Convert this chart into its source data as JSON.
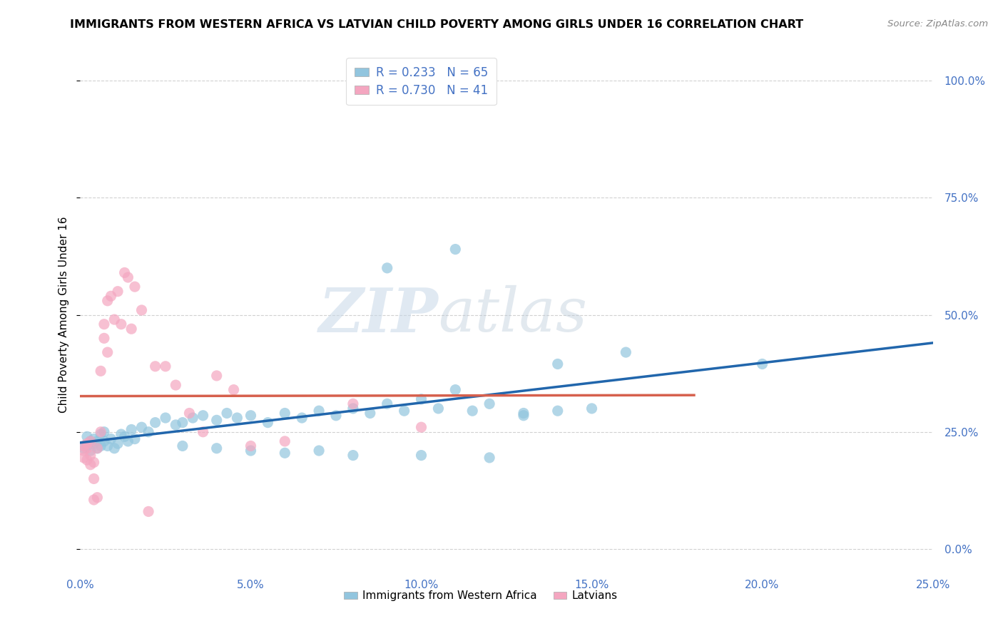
{
  "title": "IMMIGRANTS FROM WESTERN AFRICA VS LATVIAN CHILD POVERTY AMONG GIRLS UNDER 16 CORRELATION CHART",
  "source": "Source: ZipAtlas.com",
  "ylabel": "Child Poverty Among Girls Under 16",
  "xlim": [
    0.0,
    0.25
  ],
  "ylim": [
    -0.05,
    1.05
  ],
  "xticks": [
    0.0,
    0.05,
    0.1,
    0.15,
    0.2,
    0.25
  ],
  "yticks": [
    0.0,
    0.25,
    0.5,
    0.75,
    1.0
  ],
  "xtick_labels": [
    "0.0%",
    "5.0%",
    "10.0%",
    "15.0%",
    "20.0%",
    "25.0%"
  ],
  "ytick_labels": [
    "0.0%",
    "25.0%",
    "50.0%",
    "75.0%",
    "100.0%"
  ],
  "blue_color": "#92c5de",
  "pink_color": "#f4a6c0",
  "blue_line_color": "#2166ac",
  "pink_line_color": "#d6604d",
  "legend_R_blue": "R = 0.233",
  "legend_N_blue": "N = 65",
  "legend_R_pink": "R = 0.730",
  "legend_N_pink": "N = 41",
  "legend_label_blue": "Immigrants from Western Africa",
  "legend_label_pink": "Latvians",
  "watermark_zip": "ZIP",
  "watermark_atlas": "atlas",
  "blue_x": [
    0.001,
    0.002,
    0.002,
    0.003,
    0.003,
    0.004,
    0.004,
    0.005,
    0.005,
    0.006,
    0.006,
    0.007,
    0.007,
    0.008,
    0.009,
    0.01,
    0.011,
    0.012,
    0.013,
    0.014,
    0.015,
    0.016,
    0.018,
    0.02,
    0.022,
    0.025,
    0.028,
    0.03,
    0.033,
    0.036,
    0.04,
    0.043,
    0.046,
    0.05,
    0.055,
    0.06,
    0.065,
    0.07,
    0.075,
    0.08,
    0.085,
    0.09,
    0.095,
    0.1,
    0.105,
    0.11,
    0.115,
    0.12,
    0.13,
    0.14,
    0.15,
    0.16,
    0.03,
    0.04,
    0.05,
    0.06,
    0.07,
    0.08,
    0.1,
    0.12,
    0.14,
    0.09,
    0.11,
    0.13,
    0.2
  ],
  "blue_y": [
    0.215,
    0.22,
    0.24,
    0.21,
    0.23,
    0.225,
    0.235,
    0.215,
    0.23,
    0.22,
    0.245,
    0.23,
    0.25,
    0.22,
    0.235,
    0.215,
    0.225,
    0.245,
    0.24,
    0.23,
    0.255,
    0.235,
    0.26,
    0.25,
    0.27,
    0.28,
    0.265,
    0.27,
    0.28,
    0.285,
    0.275,
    0.29,
    0.28,
    0.285,
    0.27,
    0.29,
    0.28,
    0.295,
    0.285,
    0.3,
    0.29,
    0.31,
    0.295,
    0.32,
    0.3,
    0.64,
    0.295,
    0.31,
    0.285,
    0.295,
    0.3,
    0.42,
    0.22,
    0.215,
    0.21,
    0.205,
    0.21,
    0.2,
    0.2,
    0.195,
    0.395,
    0.6,
    0.34,
    0.29,
    0.395
  ],
  "pink_x": [
    0.001,
    0.001,
    0.001,
    0.002,
    0.002,
    0.002,
    0.003,
    0.003,
    0.003,
    0.004,
    0.004,
    0.004,
    0.005,
    0.005,
    0.006,
    0.006,
    0.007,
    0.007,
    0.008,
    0.008,
    0.009,
    0.01,
    0.011,
    0.012,
    0.013,
    0.014,
    0.015,
    0.016,
    0.018,
    0.02,
    0.022,
    0.025,
    0.028,
    0.032,
    0.036,
    0.04,
    0.045,
    0.05,
    0.06,
    0.08,
    0.1
  ],
  "pink_y": [
    0.21,
    0.22,
    0.195,
    0.215,
    0.19,
    0.225,
    0.2,
    0.18,
    0.23,
    0.185,
    0.15,
    0.105,
    0.215,
    0.11,
    0.38,
    0.25,
    0.45,
    0.48,
    0.42,
    0.53,
    0.54,
    0.49,
    0.55,
    0.48,
    0.59,
    0.58,
    0.47,
    0.56,
    0.51,
    0.08,
    0.39,
    0.39,
    0.35,
    0.29,
    0.25,
    0.37,
    0.34,
    0.22,
    0.23,
    0.31,
    0.26
  ]
}
